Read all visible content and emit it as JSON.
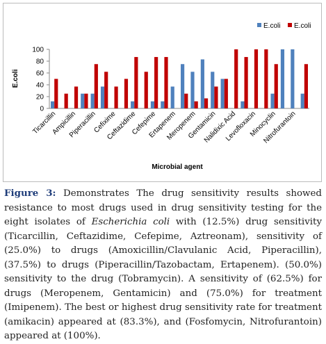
{
  "chart_data": {
    "type": "bar",
    "y_label": "E.coli",
    "x_label": "Microbial agent",
    "categories": [
      "Ticarcillin",
      null,
      "Ampicillin",
      null,
      "Piperacillin",
      null,
      "Cefixime",
      null,
      "Ceftazidime",
      null,
      "Cefepime",
      null,
      "Ertapenem",
      null,
      "Meropenem",
      null,
      "Gentamicin",
      null,
      "Nalidixic Acid",
      null,
      "Levofloxacin",
      null,
      "Minocyclin",
      null,
      "Nitrofurantoin",
      null
    ],
    "series": [
      {
        "name": "E.coli",
        "color": "#4f81bd",
        "values": [
          12,
          0,
          0,
          25,
          25,
          37,
          0,
          0,
          12,
          0,
          12,
          12,
          37,
          75,
          62,
          83,
          62,
          50,
          0,
          12,
          0,
          0,
          25,
          100,
          100,
          25
        ]
      },
      {
        "name": "E.coli",
        "color": "#c00000",
        "values": [
          50,
          25,
          37,
          25,
          75,
          62,
          37,
          50,
          87,
          62,
          87,
          87,
          0,
          25,
          12,
          17,
          37,
          50,
          100,
          87,
          100,
          100,
          75,
          0,
          0,
          75
        ]
      }
    ],
    "ylim": [
      0,
      100
    ],
    "yticks": [
      0,
      20,
      40,
      60,
      80,
      100
    ],
    "grid": false,
    "legend": "top-right"
  },
  "caption": {
    "label": "Figure 3:",
    "text_before": " Demonstrates The drug sensitivity results showed resistance to most drugs used in drug sensitivity testing for the eight isolates of ",
    "species": "Escherichia coli",
    "text_after": " with (12.5%) drug sensitivity (Ticarcillin, Ceftazidime, Cefepime, Aztreonam), sensitivity of (25.0%) to drugs (Amoxicillin/Clavulanic Acid, Piperacillin), (37.5%) to drugs (Piperacillin/Tazobactam, Ertapenem). (50.0%) sensitivity to the drug (Tobramycin). A sensitivity of (62.5%) for drugs (Meropenem, Gentamicin) and (75.0%) for treatment (Imipenem). The best or highest drug sensitivity rate for treatment (amikacin) appeared at (83.3%), and (Fosfomycin, Nitrofurantoin) appeared at (100%)."
  }
}
